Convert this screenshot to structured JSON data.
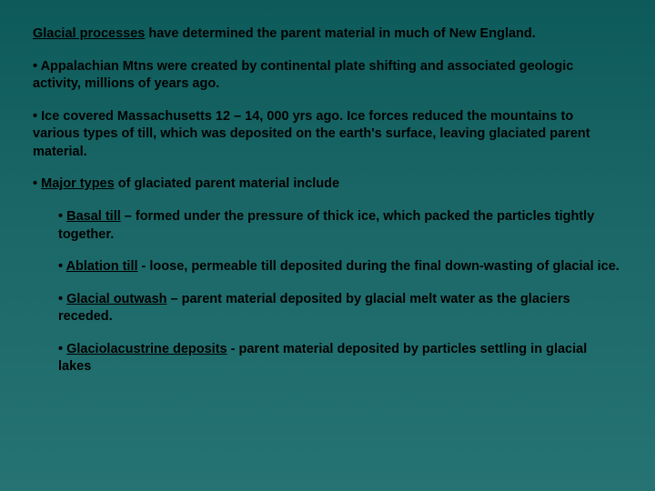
{
  "intro": {
    "lead": "Glacial processes",
    "rest": " have determined the parent material in much of New England."
  },
  "p1": "• Appalachian Mtns were created by continental plate shifting and associated geologic activity, millions of years ago.",
  "p2": "• Ice covered Massachusetts 12 – 14, 000 yrs ago. Ice forces reduced the mountains to various types of till, which was deposited on the earth's surface, leaving glaciated parent material.",
  "p3": {
    "bullet": "• ",
    "u": "Major types",
    "rest": " of glaciated parent material include"
  },
  "s1": {
    "bullet": "• ",
    "u": "Basal till",
    "rest": " – formed under the pressure of thick ice, which packed the particles tightly together."
  },
  "s2": {
    "bullet": "• ",
    "u": "Ablation till",
    "rest": " - loose, permeable till deposited during the final down-wasting of glacial ice."
  },
  "s3": {
    "bullet": "• ",
    "u": "Glacial outwash",
    "rest": " – parent material deposited by glacial melt water as the glaciers receded."
  },
  "s4": {
    "bullet": "• ",
    "u": "Glaciolacustrine deposits",
    "rest": " - parent material deposited by particles settling in glacial lakes"
  },
  "colors": {
    "bg_top": "#0d5a5a",
    "bg_bottom": "#267373",
    "text": "#000000"
  },
  "font": {
    "family": "Verdana",
    "size_pt": 14.5,
    "weight": "bold"
  }
}
